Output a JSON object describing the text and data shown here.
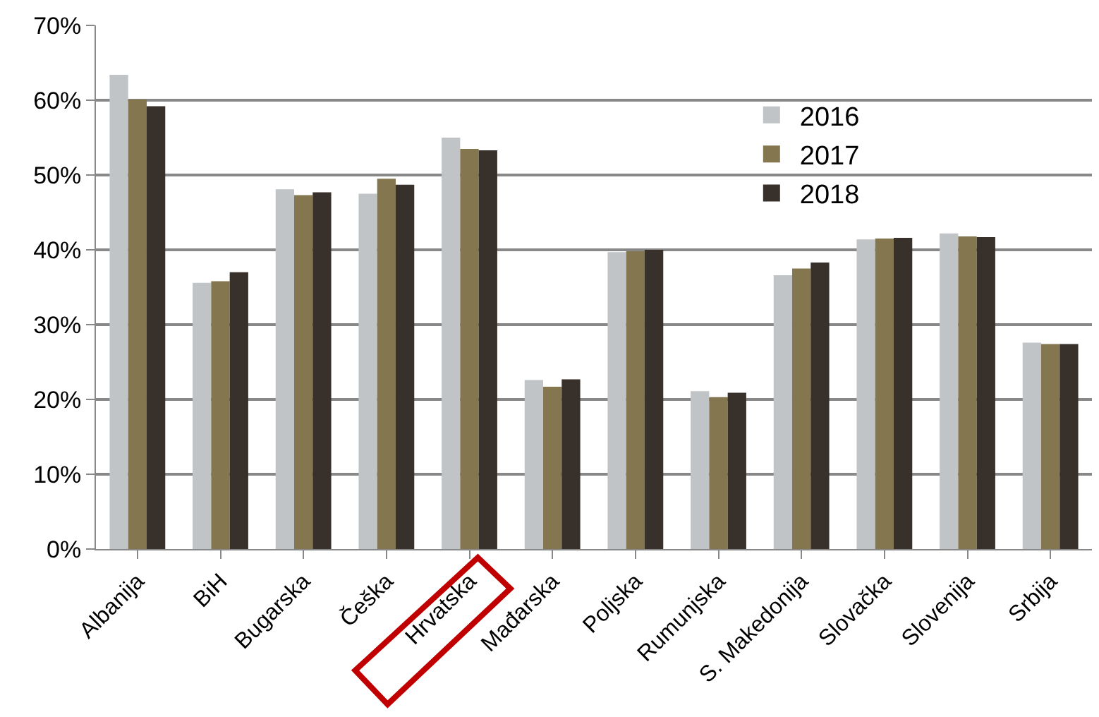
{
  "chart_data": {
    "type": "bar",
    "categories": [
      "Albanija",
      "BiH",
      "Bugarska",
      "Češka",
      "Hrvatska",
      "Mađarska",
      "Poljska",
      "Rumunjska",
      "S. Makedonija",
      "Slovačka",
      "Slovenija",
      "Srbija"
    ],
    "series": [
      {
        "name": "2016",
        "color": "#c0c4c6",
        "values": [
          63.4,
          35.6,
          48.1,
          47.5,
          55.0,
          22.6,
          39.7,
          21.1,
          36.6,
          41.4,
          42.2,
          27.6
        ]
      },
      {
        "name": "2017",
        "color": "#84764f",
        "values": [
          60.1,
          35.8,
          47.3,
          49.5,
          53.5,
          21.7,
          39.8,
          20.3,
          37.5,
          41.5,
          41.8,
          27.4
        ]
      },
      {
        "name": "2018",
        "color": "#38302b",
        "values": [
          59.2,
          37.0,
          47.7,
          48.7,
          53.3,
          22.7,
          40.0,
          20.9,
          38.3,
          41.6,
          41.7,
          27.4
        ]
      }
    ],
    "ylim": [
      0,
      70
    ],
    "yticks": [
      {
        "value": 0,
        "label": "0%"
      },
      {
        "value": 10,
        "label": "10%"
      },
      {
        "value": 20,
        "label": "20%"
      },
      {
        "value": 30,
        "label": "30%"
      },
      {
        "value": 40,
        "label": "40%"
      },
      {
        "value": 50,
        "label": "50%"
      },
      {
        "value": 60,
        "label": "60%"
      },
      {
        "value": 70,
        "label": "70%"
      }
    ],
    "grid": "y",
    "legend": "top"
  }
}
